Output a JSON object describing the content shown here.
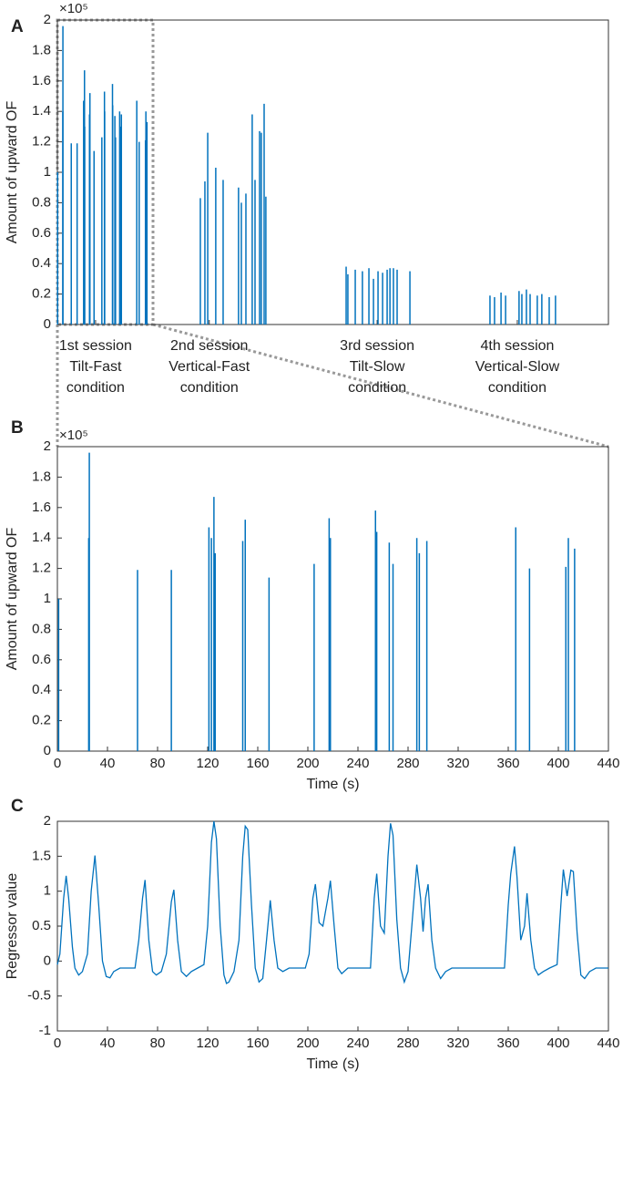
{
  "chart_data": [
    {
      "type": "spike",
      "label": "A",
      "ylabel": "Amount of upward OF",
      "y_exponent_label": "×10⁵",
      "color": "#0072bd",
      "xlim": [
        0,
        2540
      ],
      "ylim": [
        0,
        2
      ],
      "xticks": [
        {
          "value": 176,
          "label": [
            "1st session",
            "Tilt-Fast",
            "condition"
          ]
        },
        {
          "value": 700,
          "label": [
            "2nd session",
            "Vertical-Fast",
            "condition"
          ]
        },
        {
          "value": 1474,
          "label": [
            "3rd session",
            "Tilt-Slow",
            "condition"
          ]
        },
        {
          "value": 2120,
          "label": [
            "4th session",
            "Vertical-Slow",
            "condition"
          ]
        }
      ],
      "yticks": [
        0,
        0.2,
        0.4,
        0.6,
        0.8,
        1,
        1.2,
        1.4,
        1.6,
        1.8,
        2
      ],
      "x": [
        1,
        25,
        25.5,
        64,
        91,
        121,
        123,
        125,
        126,
        148,
        150,
        169,
        205,
        217,
        218,
        254,
        255,
        265,
        268,
        287,
        289,
        295,
        366,
        377,
        406,
        408,
        413,
        659,
        680,
        693,
        730,
        764,
        835,
        848,
        869,
        898,
        911,
        932,
        940,
        953,
        961,
        1331,
        1339,
        1373,
        1406,
        1436,
        1457,
        1478,
        1499,
        1520,
        1533,
        1549,
        1566,
        1625,
        1994,
        2015,
        2045,
        2066,
        2128,
        2141,
        2162,
        2179,
        2212,
        2233,
        2267,
        2296
      ],
      "values": [
        1.0,
        1.4,
        1.96,
        1.19,
        1.19,
        1.47,
        1.4,
        1.67,
        1.3,
        1.38,
        1.52,
        1.14,
        1.23,
        1.53,
        1.4,
        1.58,
        1.44,
        1.37,
        1.23,
        1.4,
        1.3,
        1.38,
        1.47,
        1.2,
        1.21,
        1.4,
        1.33,
        0.83,
        0.94,
        1.26,
        1.03,
        0.95,
        0.9,
        0.8,
        0.86,
        1.38,
        0.95,
        1.27,
        1.26,
        1.45,
        0.84,
        0.38,
        0.33,
        0.36,
        0.35,
        0.37,
        0.3,
        0.35,
        0.34,
        0.36,
        0.37,
        0.37,
        0.36,
        0.35,
        0.19,
        0.18,
        0.21,
        0.19,
        0.22,
        0.2,
        0.23,
        0.2,
        0.19,
        0.2,
        0.18,
        0.19
      ]
    },
    {
      "type": "spike",
      "label": "B",
      "ylabel": "Amount of upward OF",
      "y_exponent_label": "×10⁵",
      "xlabel": "Time (s)",
      "color": "#0072bd",
      "xlim": [
        0,
        440
      ],
      "ylim": [
        0,
        2
      ],
      "xticks": [
        0,
        40,
        80,
        120,
        160,
        200,
        240,
        280,
        320,
        360,
        400,
        440
      ],
      "yticks": [
        0,
        0.2,
        0.4,
        0.6,
        0.8,
        1,
        1.2,
        1.4,
        1.6,
        1.8,
        2
      ],
      "x": [
        1,
        25,
        25.5,
        64,
        91,
        121,
        123,
        125,
        126,
        148,
        150,
        169,
        205,
        217,
        218,
        254,
        255,
        265,
        268,
        287,
        289,
        295,
        366,
        377,
        406,
        408,
        413
      ],
      "values": [
        1.0,
        1.4,
        1.96,
        1.19,
        1.19,
        1.47,
        1.4,
        1.67,
        1.3,
        1.38,
        1.52,
        1.14,
        1.23,
        1.53,
        1.4,
        1.58,
        1.44,
        1.37,
        1.23,
        1.4,
        1.3,
        1.38,
        1.47,
        1.2,
        1.21,
        1.4,
        1.33
      ]
    },
    {
      "type": "line",
      "label": "C",
      "ylabel": "Regressor value",
      "xlabel": "Time (s)",
      "color": "#0072bd",
      "xlim": [
        0,
        440
      ],
      "ylim": [
        -1,
        2
      ],
      "xticks": [
        0,
        40,
        80,
        120,
        160,
        200,
        240,
        280,
        320,
        360,
        400,
        440
      ],
      "yticks": [
        -1,
        -0.5,
        0,
        0.5,
        1,
        1.5,
        2
      ],
      "x": [
        0,
        2,
        5,
        7,
        9,
        12,
        14,
        17,
        20,
        24,
        27,
        30,
        33,
        36,
        39,
        42,
        45,
        50,
        62,
        65,
        68,
        70,
        73,
        76,
        79,
        83,
        87,
        91,
        93,
        96,
        99,
        103,
        107,
        112,
        117,
        120,
        123,
        125,
        127,
        130,
        133,
        135,
        137,
        141,
        145,
        148,
        150,
        152,
        155,
        158,
        161,
        164,
        167,
        170,
        173,
        176,
        180,
        185,
        198,
        201,
        204,
        206,
        209,
        212,
        216,
        218,
        221,
        224,
        227,
        232,
        250,
        253,
        255,
        258,
        261,
        264,
        266,
        268,
        271,
        274,
        277,
        280,
        283,
        287,
        290,
        292,
        294,
        296,
        299,
        302,
        306,
        310,
        315,
        357,
        360,
        362,
        365,
        367,
        370,
        373,
        375,
        378,
        381,
        384,
        388,
        393,
        399,
        402,
        404,
        407,
        410,
        412,
        415,
        418,
        421,
        425,
        430,
        440
      ],
      "values": [
        -0.05,
        0.1,
        0.9,
        1.22,
        0.9,
        0.2,
        -0.1,
        -0.2,
        -0.15,
        0.1,
        1.0,
        1.51,
        0.8,
        0.0,
        -0.22,
        -0.24,
        -0.15,
        -0.1,
        -0.1,
        0.3,
        0.9,
        1.16,
        0.3,
        -0.15,
        -0.2,
        -0.15,
        0.1,
        0.85,
        1.02,
        0.3,
        -0.15,
        -0.22,
        -0.15,
        -0.1,
        -0.05,
        0.5,
        1.7,
        2.0,
        1.75,
        0.5,
        -0.2,
        -0.32,
        -0.3,
        -0.15,
        0.3,
        1.5,
        1.93,
        1.88,
        0.8,
        -0.1,
        -0.3,
        -0.25,
        0.3,
        0.87,
        0.3,
        -0.1,
        -0.15,
        -0.1,
        -0.1,
        0.1,
        0.9,
        1.1,
        0.55,
        0.5,
        0.9,
        1.15,
        0.5,
        -0.1,
        -0.18,
        -0.1,
        -0.1,
        0.9,
        1.25,
        0.5,
        0.4,
        1.5,
        1.97,
        1.8,
        0.6,
        -0.1,
        -0.3,
        -0.15,
        0.5,
        1.38,
        0.9,
        0.42,
        0.9,
        1.1,
        0.3,
        -0.1,
        -0.25,
        -0.15,
        -0.1,
        -0.1,
        0.8,
        1.25,
        1.64,
        1.2,
        0.3,
        0.5,
        0.97,
        0.3,
        -0.1,
        -0.2,
        -0.15,
        -0.1,
        -0.05,
        0.8,
        1.31,
        0.93,
        1.3,
        1.28,
        0.4,
        -0.2,
        -0.25,
        -0.15,
        -0.1,
        -0.1
      ]
    }
  ]
}
